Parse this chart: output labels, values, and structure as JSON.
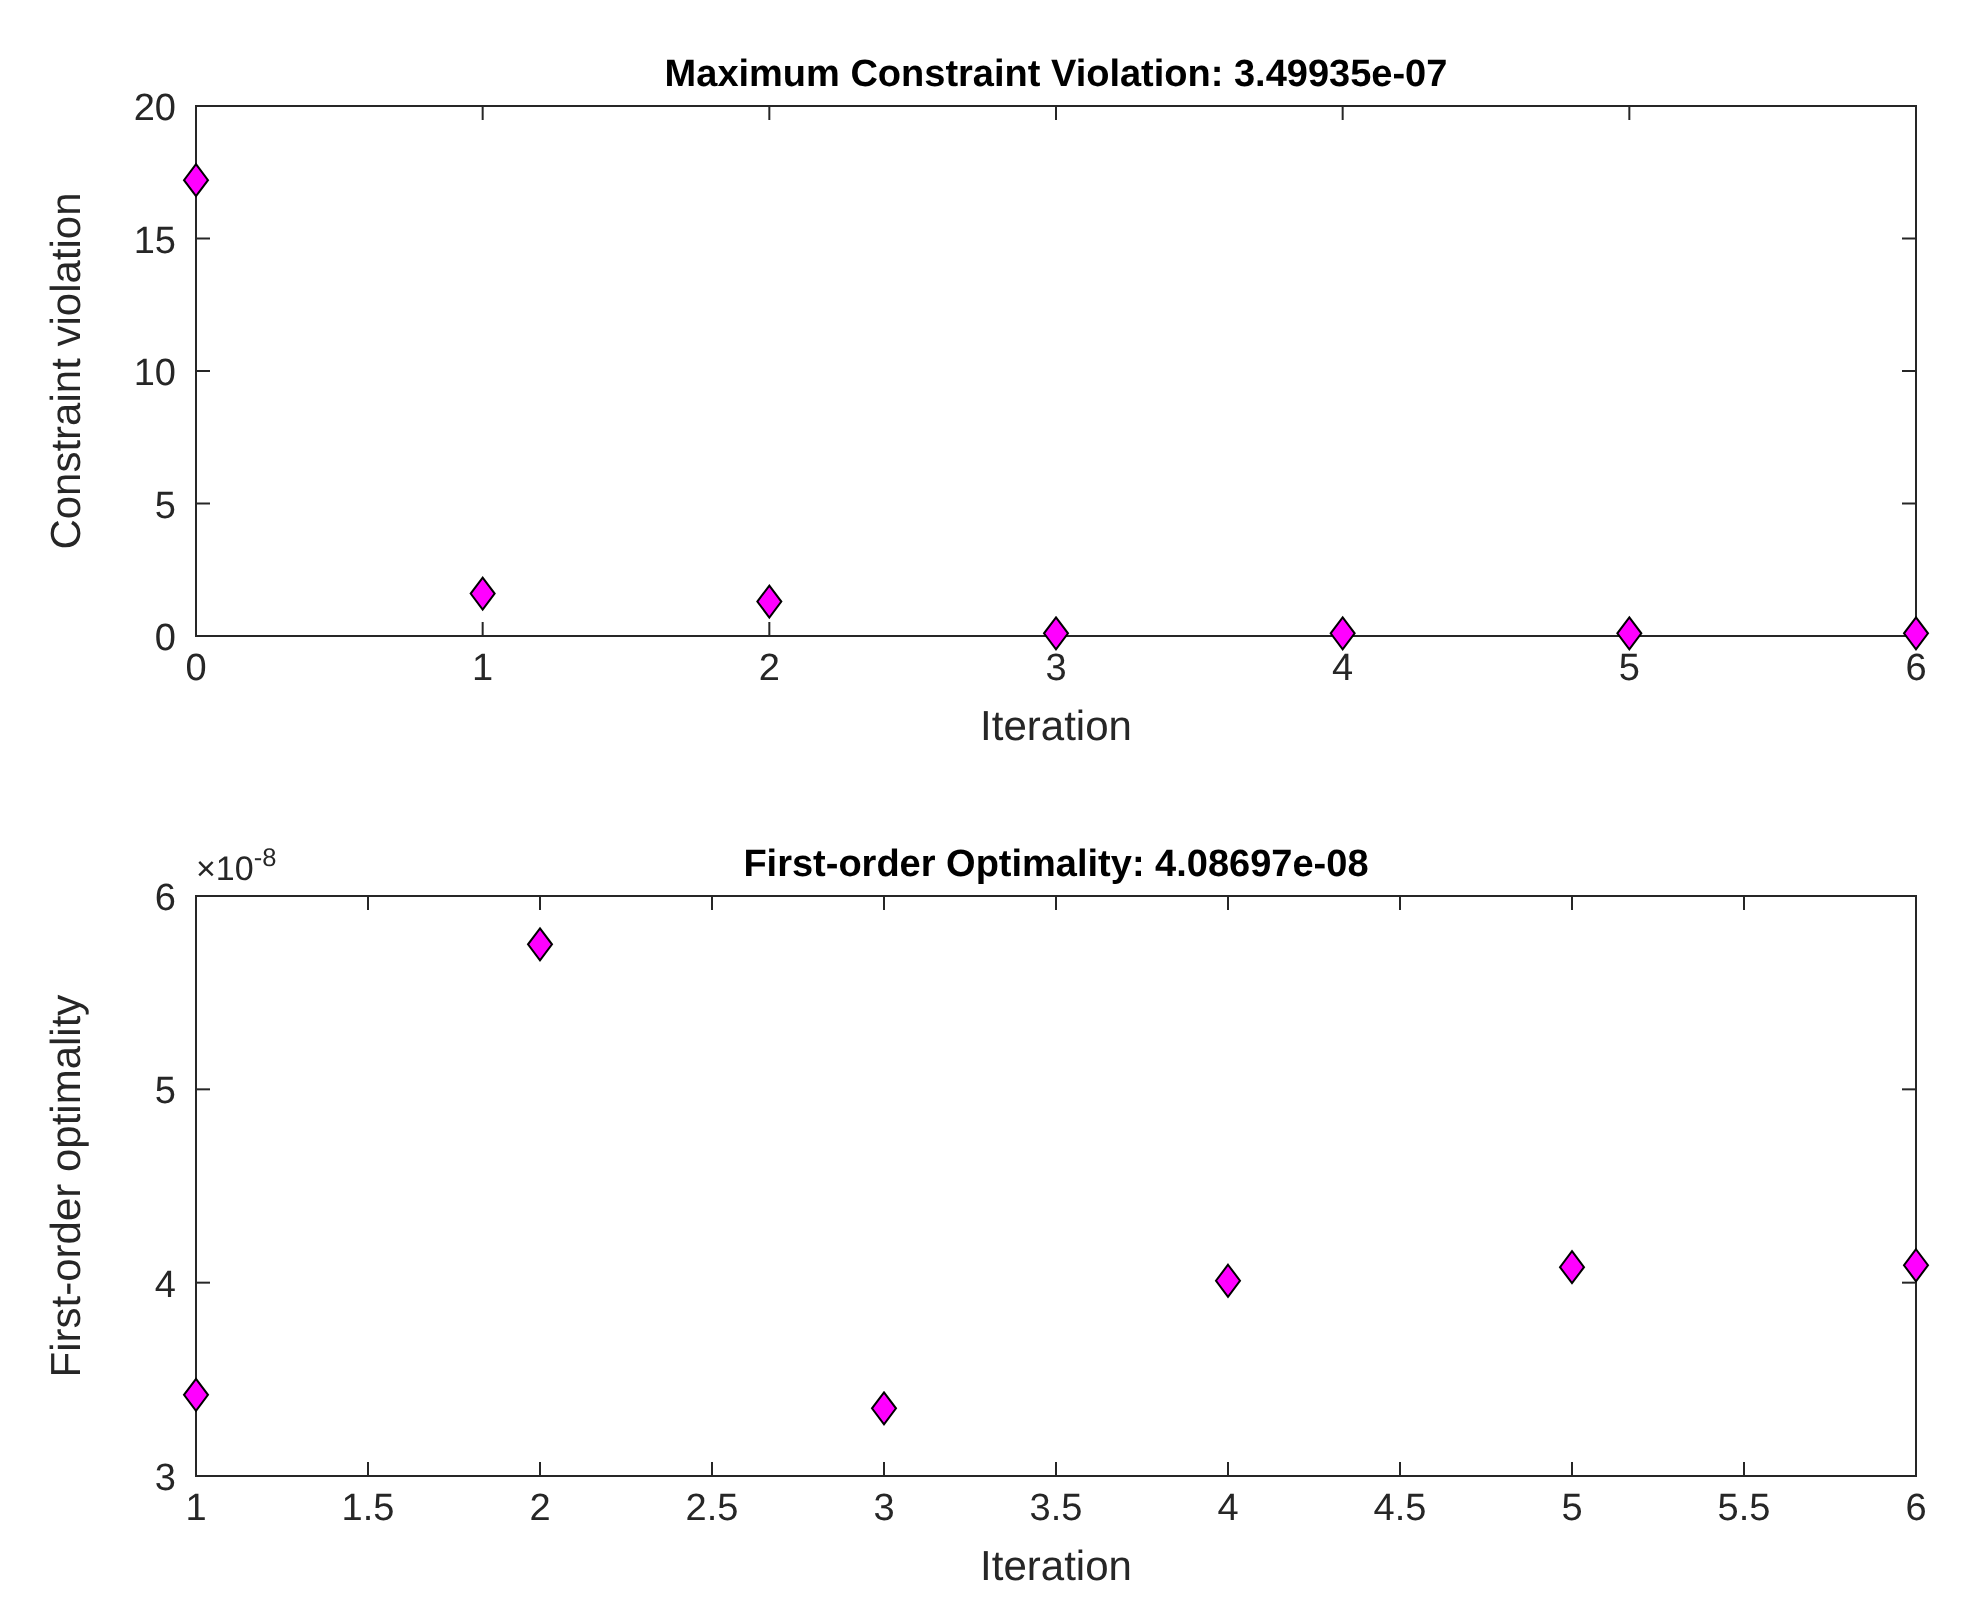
{
  "chart_data": [
    {
      "type": "scatter",
      "title": "Maximum Constraint Violation: 3.49935e-07",
      "xlabel": "Iteration",
      "ylabel": "Constraint violation",
      "x": [
        0,
        1,
        2,
        3,
        4,
        5,
        6
      ],
      "values": [
        17.2,
        1.6,
        1.3,
        0.1,
        0.1,
        0.1,
        0.1
      ],
      "color": "#ff00ff",
      "marker": "diamond",
      "xlim": [
        0,
        6
      ],
      "xticks": [
        0,
        1,
        2,
        3,
        4,
        5,
        6
      ],
      "ylim": [
        0,
        20
      ],
      "yticks": [
        0,
        5,
        10,
        15,
        20
      ]
    },
    {
      "type": "scatter",
      "title": "First-order Optimality: 4.08697e-08",
      "xlabel": "Iteration",
      "ylabel": "First-order optimality",
      "annotations": [
        "×10$^{-8}$"
      ],
      "x": [
        1,
        2,
        3,
        4,
        5,
        6
      ],
      "values": [
        3.42,
        5.75,
        3.35,
        4.01,
        4.08,
        4.09
      ],
      "color": "#ff00ff",
      "marker": "diamond",
      "xlim": [
        1,
        6
      ],
      "xticks": [
        1,
        1.5,
        2,
        2.5,
        3,
        3.5,
        4,
        4.5,
        5,
        5.5,
        6
      ],
      "ylim": [
        3,
        6
      ],
      "yticks": [
        3,
        4,
        5,
        6
      ]
    }
  ]
}
